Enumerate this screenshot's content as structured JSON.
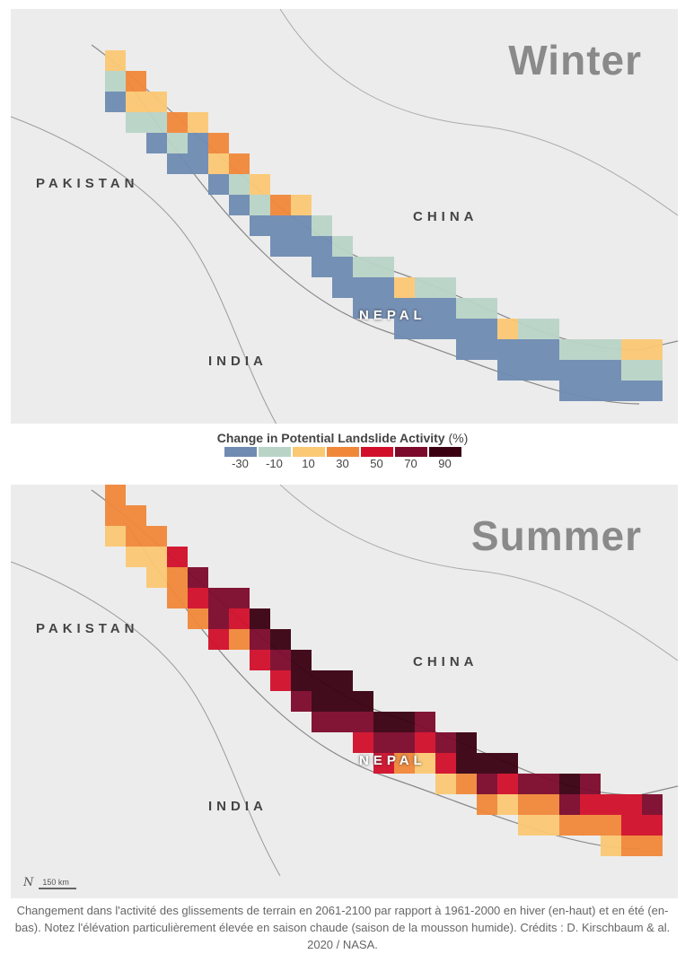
{
  "legend": {
    "title": "Change in Potential Landslide Activity",
    "unit": "(%)",
    "classes": [
      {
        "label": "-30",
        "color": "#6f8bb2"
      },
      {
        "label": "-10",
        "color": "#b9d4c7"
      },
      {
        "label": "10",
        "color": "#fbc874"
      },
      {
        "label": "30",
        "color": "#f0883a"
      },
      {
        "label": "50",
        "color": "#d20f2b"
      },
      {
        "label": "70",
        "color": "#7c0a2b"
      },
      {
        "label": "90",
        "color": "#3a0012"
      }
    ]
  },
  "panels": [
    {
      "season": "Winter",
      "labels": {
        "pakistan": "PAKISTAN",
        "china": "CHINA",
        "india": "INDIA",
        "nepal": "NEPAL"
      },
      "cells": [
        "210",
        "321",
        "210",
        "310",
        "200",
        "320",
        "310",
        "210",
        "300",
        "200",
        "100",
        "100",
        "100",
        "100",
        "200",
        "100",
        "100",
        "100",
        "100",
        "200",
        "100",
        "100",
        "100",
        "100",
        "100",
        "210",
        "210"
      ]
    },
    {
      "season": "Summer",
      "labels": {
        "pakistan": "PAKISTAN",
        "china": "CHINA",
        "india": "INDIA",
        "nepal": "NEPAL"
      },
      "cells": [
        "332",
        "332",
        "322",
        "433",
        "543",
        "554",
        "543",
        "654",
        "654",
        "665",
        "665",
        "665",
        "654",
        "654",
        "653",
        "542",
        "542",
        "663",
        "653",
        "642",
        "532",
        "532",
        "653",
        "543",
        "432",
        "443",
        "543"
      ],
      "scale_bar": "150 km",
      "north": "N"
    }
  ],
  "caption": "Changement dans l'activité des glissements de terrain en 2061-2100 par rapport à 1961-2000 en hiver (en-haut) et en été (en-bas). Notez l'élévation particulièrement élevée en saison chaude (saison de la mousson humide). Crédits : D. Kirschbaum & al. 2020 / NASA."
}
